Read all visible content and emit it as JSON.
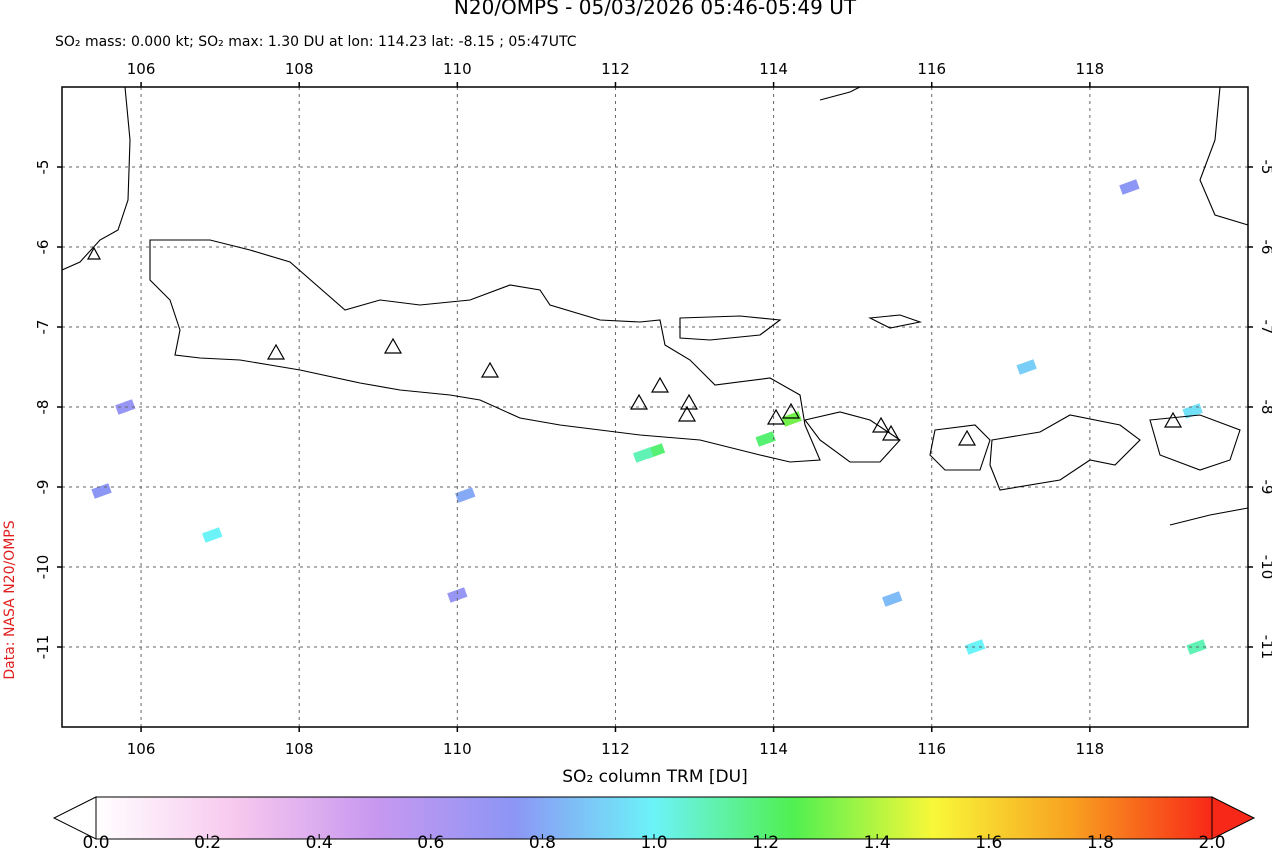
{
  "chart_data": {
    "type": "map",
    "title": "N20/OMPS - 05/03/2026 05:46-05:49 UT",
    "subtitle": "SO₂ mass: 0.000 kt; SO₂ max: 1.30 DU at lon: 114.23 lat: -8.15 ; 05:47UTC",
    "credit": "Data: NASA N20/OMPS",
    "xlim": [
      105,
      120
    ],
    "ylim": [
      -12,
      -4
    ],
    "xticks": [
      106,
      108,
      110,
      112,
      114,
      116,
      118
    ],
    "yticks": [
      -5,
      -6,
      -7,
      -8,
      -9,
      -10,
      -11
    ],
    "grid": true,
    "cells": [
      {
        "lon": 114.23,
        "lat": -8.15,
        "value": 1.3
      },
      {
        "lon": 112.5,
        "lat": -8.55,
        "value": 1.2
      },
      {
        "lon": 112.35,
        "lat": -8.6,
        "value": 1.1
      },
      {
        "lon": 113.9,
        "lat": -8.4,
        "value": 1.2
      },
      {
        "lon": 106.9,
        "lat": -9.6,
        "value": 1.0
      },
      {
        "lon": 116.55,
        "lat": -11.0,
        "value": 1.0
      },
      {
        "lon": 119.35,
        "lat": -11.0,
        "value": 1.1
      },
      {
        "lon": 119.3,
        "lat": -8.05,
        "value": 0.95
      },
      {
        "lon": 115.5,
        "lat": -10.4,
        "value": 0.85
      },
      {
        "lon": 110.1,
        "lat": -9.1,
        "value": 0.8
      },
      {
        "lon": 110.0,
        "lat": -10.35,
        "value": 0.7
      },
      {
        "lon": 105.5,
        "lat": -9.05,
        "value": 0.75
      },
      {
        "lon": 105.8,
        "lat": -8.0,
        "value": 0.7
      },
      {
        "lon": 118.5,
        "lat": -5.25,
        "value": 0.75
      },
      {
        "lon": 117.2,
        "lat": -7.5,
        "value": 0.9
      }
    ],
    "colorbar": {
      "label": "SO₂ column TRM [DU]",
      "lim": [
        0,
        2
      ],
      "ticks": [
        {
          "value": 0,
          "label": "0.0"
        },
        {
          "value": 0.2,
          "label": "0.2"
        },
        {
          "value": 0.4,
          "label": "0.4"
        },
        {
          "value": 0.6,
          "label": "0.6"
        },
        {
          "value": 0.8,
          "label": "0.8"
        },
        {
          "value": 1,
          "label": "1.0"
        },
        {
          "value": 1.2,
          "label": "1.2"
        },
        {
          "value": 1.4,
          "label": "1.4"
        },
        {
          "value": 1.6,
          "label": "1.6"
        },
        {
          "value": 1.8,
          "label": "1.8"
        },
        {
          "value": 2,
          "label": "2.0"
        }
      ],
      "colors": [
        "#ffffff",
        "#f7c8ee",
        "#c898f0",
        "#8c96f5",
        "#6cf3f8",
        "#50f050",
        "#f8f838",
        "#f8a020",
        "#f82818"
      ]
    }
  }
}
